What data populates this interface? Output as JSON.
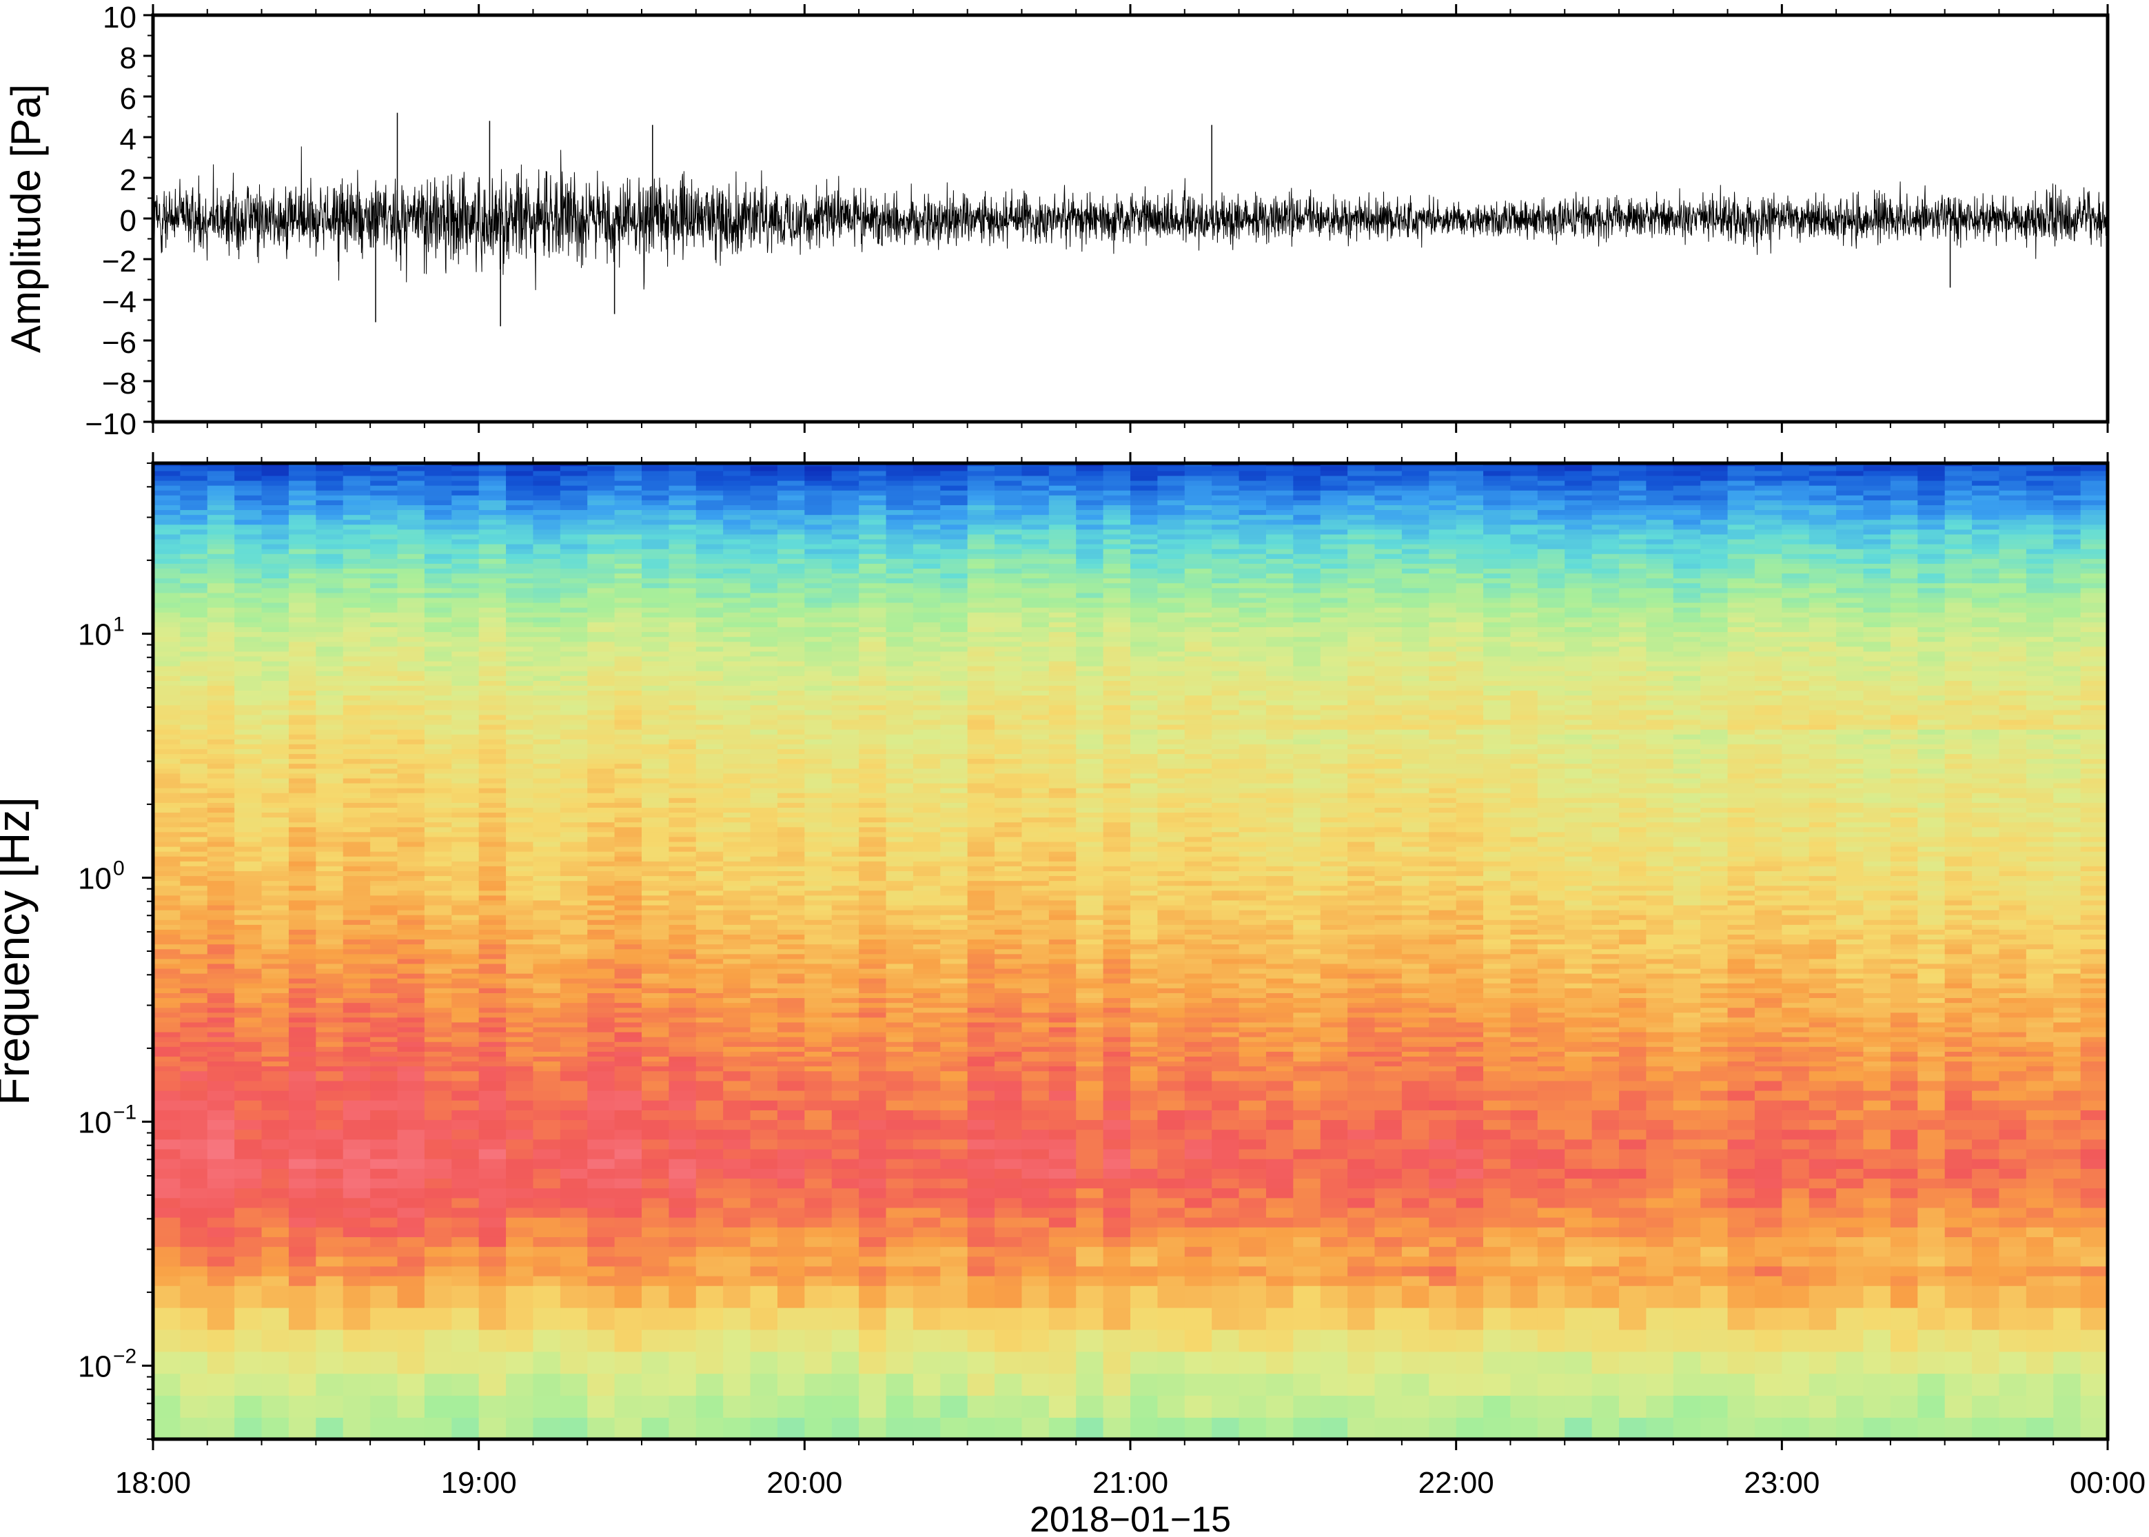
{
  "colors": {
    "waveform": "#000000",
    "axis": "#000000",
    "spectrogram_palette": [
      "#f87a84",
      "#f25a5a",
      "#f9a146",
      "#f6d86c",
      "#dcec8c",
      "#a8ee9a",
      "#62dcd8",
      "#3aa0f0",
      "#1456d6",
      "#0a1fb0"
    ]
  },
  "chart_data": [
    {
      "type": "line",
      "name": "waveform-panel",
      "ylabel": "Amplitude [Pa]",
      "ylim": [
        -10,
        10
      ],
      "yticks": [
        -10,
        -8,
        -6,
        -4,
        -2,
        0,
        2,
        4,
        6,
        8,
        10
      ],
      "ytick_labels": [
        "−10",
        "−8",
        "−6",
        "−4",
        "−2",
        "0",
        "2",
        "4",
        "6",
        "8",
        "10"
      ],
      "xlim": [
        "18:00",
        "00:00"
      ],
      "x": [
        "18:00",
        "18:30",
        "19:00",
        "19:30",
        "20:00",
        "20:30",
        "21:00",
        "21:30",
        "22:00",
        "22:30",
        "23:00",
        "23:30",
        "00:00"
      ],
      "envelope_max": [
        2.6,
        3.2,
        4.0,
        3.4,
        2.6,
        2.2,
        2.0,
        2.0,
        1.5,
        1.8,
        2.0,
        2.0,
        2.0
      ],
      "envelope_min": [
        -2.6,
        -3.2,
        -4.0,
        -3.4,
        -2.6,
        -2.2,
        -2.0,
        -2.0,
        -1.5,
        -1.8,
        -2.0,
        -2.0,
        -2.0
      ],
      "peaks": [
        {
          "x": "18:45",
          "y": 5.2
        },
        {
          "x": "19:02",
          "y": 4.8
        },
        {
          "x": "19:32",
          "y": 4.6
        },
        {
          "x": "21:15",
          "y": 4.6
        },
        {
          "x": "18:41",
          "y": -5.1
        },
        {
          "x": "19:04",
          "y": -5.3
        },
        {
          "x": "19:25",
          "y": -4.7
        },
        {
          "x": "23:31",
          "y": -3.4
        }
      ],
      "grid": false
    },
    {
      "type": "heatmap",
      "name": "spectrogram-panel",
      "ylabel": "Frequency [Hz]",
      "yscale": "log",
      "ylim": [
        0.005,
        50
      ],
      "yticks": [
        0.01,
        0.1,
        1,
        10
      ],
      "ytick_labels": [
        {
          "base": "10",
          "exp": "−2"
        },
        {
          "base": "10",
          "exp": "−1"
        },
        {
          "base": "10",
          "exp": "0"
        },
        {
          "base": "10",
          "exp": "1"
        }
      ],
      "xlim": [
        "18:00",
        "00:00"
      ],
      "xticks": [
        "18:00",
        "19:00",
        "20:00",
        "21:00",
        "22:00",
        "23:00",
        "00:00"
      ],
      "xlabel": "2018−01−15",
      "grid": false
    }
  ]
}
